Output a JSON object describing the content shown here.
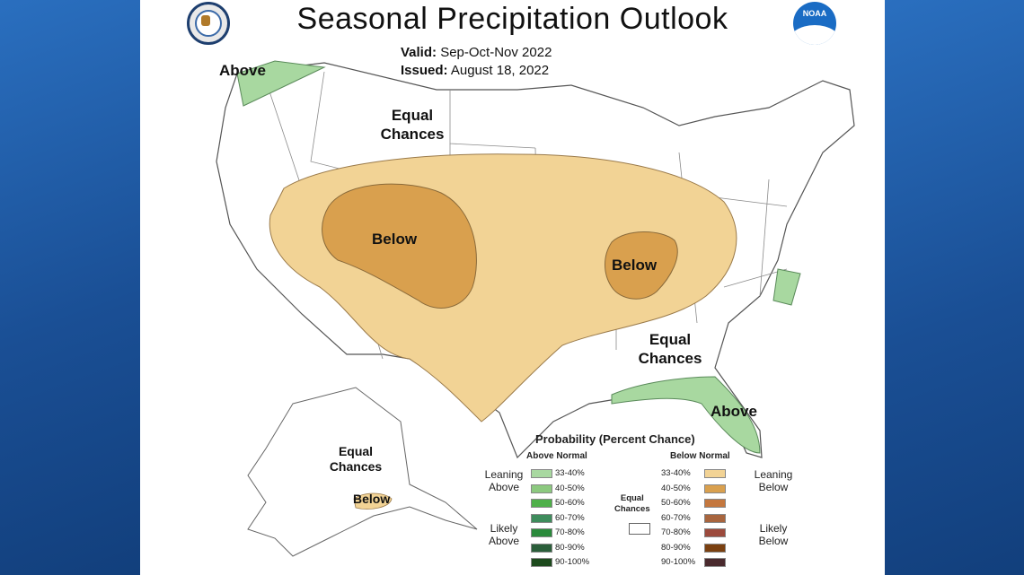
{
  "header": {
    "title": "Seasonal Precipitation Outlook",
    "valid_label": "Valid:",
    "valid_value": "Sep-Oct-Nov 2022",
    "issued_label": "Issued:",
    "issued_value": "August 18, 2022"
  },
  "logos": {
    "left": "commerce-seal-icon",
    "right_text": "NOAA"
  },
  "map_labels": {
    "above_nw": "Above",
    "equal_north_1": "Equal",
    "equal_north_2": "Chances",
    "below_west": "Below",
    "below_east": "Below",
    "equal_south_1": "Equal",
    "equal_south_2": "Chances",
    "above_fl": "Above",
    "equal_ak_1": "Equal",
    "equal_ak_2": "Chances",
    "below_ak": "Below"
  },
  "colors": {
    "panel_bg": "#ffffff",
    "frame_blue": "#1c5aa3",
    "below_33_40": "#f2d395",
    "below_40_50": "#d9a04e",
    "above_33_40": "#a8d8a0",
    "state_line": "#8a8a8a"
  },
  "legend": {
    "title": "Probability (Percent Chance)",
    "above_header": "Above Normal",
    "below_header": "Below Normal",
    "equal_1": "Equal",
    "equal_2": "Chances",
    "leaning_above_1": "Leaning",
    "leaning_above_2": "Above",
    "likely_above_1": "Likely",
    "likely_above_2": "Above",
    "leaning_below_1": "Leaning",
    "leaning_below_2": "Below",
    "likely_below_1": "Likely",
    "likely_below_2": "Below",
    "above": [
      {
        "range": "33-40%",
        "color": "#a8d8a0"
      },
      {
        "range": "40-50%",
        "color": "#8cc97f"
      },
      {
        "range": "50-60%",
        "color": "#4fb04a"
      },
      {
        "range": "60-70%",
        "color": "#3e8c5c"
      },
      {
        "range": "70-80%",
        "color": "#2a8a3b"
      },
      {
        "range": "80-90%",
        "color": "#2a5e3a"
      },
      {
        "range": "90-100%",
        "color": "#1d4a1d"
      }
    ],
    "below": [
      {
        "range": "33-40%",
        "color": "#f2d395"
      },
      {
        "range": "40-50%",
        "color": "#d9a04e"
      },
      {
        "range": "50-60%",
        "color": "#c4773e"
      },
      {
        "range": "60-70%",
        "color": "#a8653e"
      },
      {
        "range": "70-80%",
        "color": "#9c4a3c"
      },
      {
        "range": "80-90%",
        "color": "#7a4010"
      },
      {
        "range": "90-100%",
        "color": "#4a2a2e"
      }
    ]
  }
}
